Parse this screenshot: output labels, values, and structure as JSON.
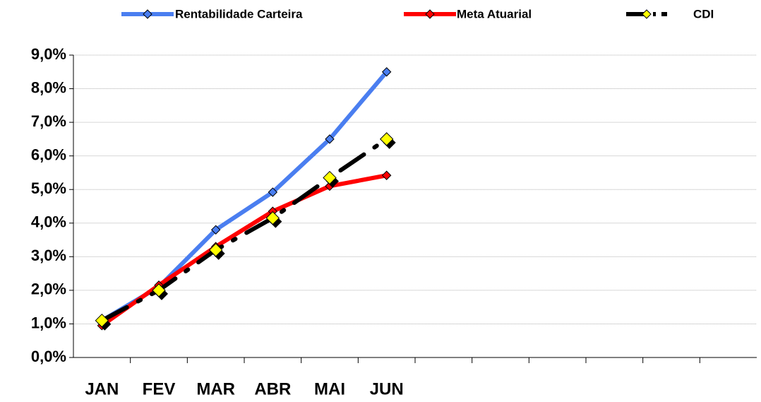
{
  "chart_data": {
    "type": "line",
    "categories": [
      "JAN",
      "FEV",
      "MAR",
      "ABR",
      "MAI",
      "JUN",
      null,
      null,
      null,
      null,
      null,
      null
    ],
    "series": [
      {
        "name": "Rentabilidade Carteira",
        "color": "#4a7ef0",
        "marker": "#4a7ef0",
        "values": [
          1.1,
          2.1,
          3.8,
          4.92,
          6.5,
          8.5,
          null,
          null,
          null,
          null,
          null,
          null
        ]
      },
      {
        "name": "Meta Atuarial",
        "color": "#ff0000",
        "marker": "#ff0000",
        "values": [
          0.95,
          2.15,
          3.3,
          4.35,
          5.1,
          5.42,
          null,
          null,
          null,
          null,
          null,
          null
        ]
      },
      {
        "name": "CDI",
        "color": "#000000",
        "marker": "#ffff00",
        "dashed": true,
        "values": [
          1.1,
          2.0,
          3.2,
          4.15,
          5.35,
          6.5,
          null,
          null,
          null,
          null,
          null,
          null
        ]
      }
    ],
    "ylim": [
      0,
      9
    ],
    "yticks": [
      {
        "value": 0,
        "label": "0,0%"
      },
      {
        "value": 1,
        "label": "1,0%"
      },
      {
        "value": 2,
        "label": "2,0%"
      },
      {
        "value": 3,
        "label": "3,0%"
      },
      {
        "value": 4,
        "label": "4,0%"
      },
      {
        "value": 5,
        "label": "5,0%"
      },
      {
        "value": 6,
        "label": "6,0%"
      },
      {
        "value": 7,
        "label": "7,0%"
      },
      {
        "value": 8,
        "label": "8,0%"
      },
      {
        "value": 9,
        "label": "9,0%"
      }
    ],
    "grid": true,
    "legend": "top"
  }
}
